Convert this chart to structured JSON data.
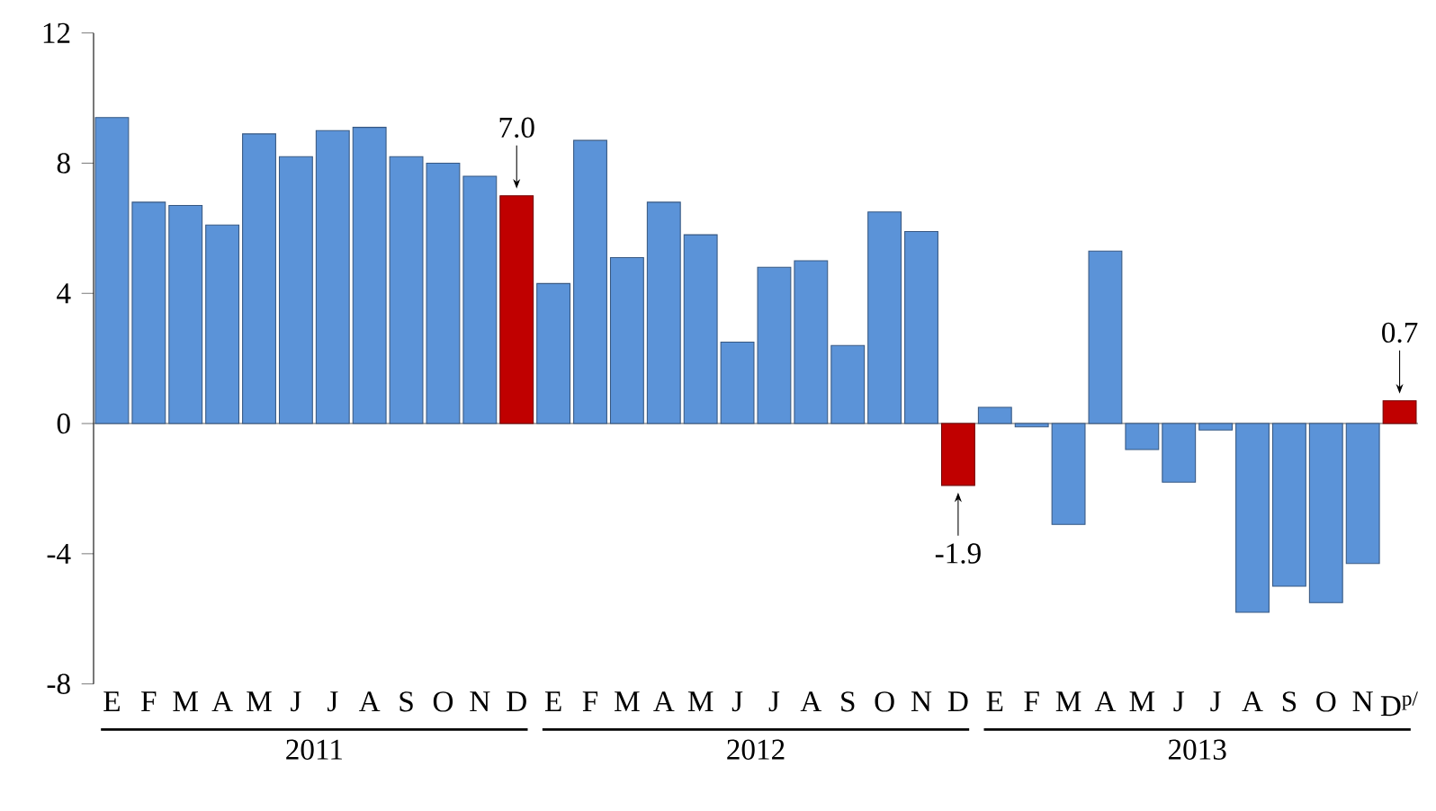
{
  "chart_data": {
    "type": "bar",
    "categories": [
      "E",
      "F",
      "M",
      "A",
      "M",
      "J",
      "J",
      "A",
      "S",
      "O",
      "N",
      "D",
      "E",
      "F",
      "M",
      "A",
      "M",
      "J",
      "J",
      "A",
      "S",
      "O",
      "N",
      "D",
      "E",
      "F",
      "M",
      "A",
      "M",
      "J",
      "J",
      "A",
      "S",
      "O",
      "N",
      "D$^{p/}$"
    ],
    "values": [
      9.4,
      6.8,
      6.7,
      6.1,
      8.9,
      8.2,
      9.0,
      9.1,
      8.2,
      8.0,
      7.6,
      7.0,
      4.3,
      8.7,
      5.1,
      6.8,
      5.8,
      2.5,
      4.8,
      5.0,
      2.4,
      6.5,
      5.9,
      -1.9,
      0.5,
      -0.1,
      -3.1,
      5.3,
      -0.8,
      -1.8,
      -0.2,
      -5.8,
      -5.0,
      -5.5,
      -4.3,
      0.7
    ],
    "colors": [
      "#5b93d8",
      "#5b93d8",
      "#5b93d8",
      "#5b93d8",
      "#5b93d8",
      "#5b93d8",
      "#5b93d8",
      "#5b93d8",
      "#5b93d8",
      "#5b93d8",
      "#5b93d8",
      "#c00000",
      "#5b93d8",
      "#5b93d8",
      "#5b93d8",
      "#5b93d8",
      "#5b93d8",
      "#5b93d8",
      "#5b93d8",
      "#5b93d8",
      "#5b93d8",
      "#5b93d8",
      "#5b93d8",
      "#c00000",
      "#5b93d8",
      "#5b93d8",
      "#5b93d8",
      "#5b93d8",
      "#5b93d8",
      "#5b93d8",
      "#5b93d8",
      "#5b93d8",
      "#5b93d8",
      "#5b93d8",
      "#5b93d8",
      "#c00000"
    ],
    "value_labels": [
      null,
      null,
      null,
      null,
      null,
      null,
      null,
      null,
      null,
      null,
      null,
      "7.0",
      null,
      null,
      null,
      null,
      null,
      null,
      null,
      null,
      null,
      null,
      null,
      "-1.9",
      null,
      null,
      null,
      null,
      null,
      null,
      null,
      null,
      null,
      null,
      null,
      "0.7"
    ],
    "annotations": [
      "2011",
      "2012",
      "2013"
    ],
    "ylim": [
      -8,
      12
    ],
    "yticks": [
      -8,
      -4,
      0,
      4,
      8,
      12
    ]
  }
}
